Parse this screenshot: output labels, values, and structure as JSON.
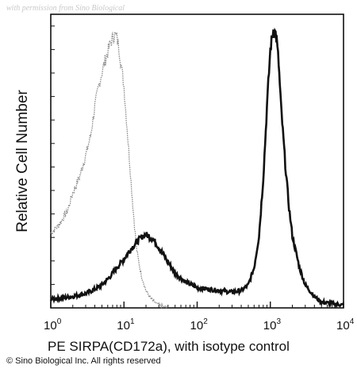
{
  "watermark": "with permission from Sino Biological",
  "chart_data": {
    "type": "line",
    "xlabel": "PE SIRPA(CD172a), with isotype control",
    "ylabel": "Relative Cell Number",
    "x_scale": "log",
    "xlim": [
      1,
      10000
    ],
    "ylim": [
      0,
      100
    ],
    "x_ticks": [
      {
        "base": "10",
        "exp": "0",
        "value": 1
      },
      {
        "base": "10",
        "exp": "1",
        "value": 10
      },
      {
        "base": "10",
        "exp": "2",
        "value": 100
      },
      {
        "base": "10",
        "exp": "3",
        "value": 1000
      },
      {
        "base": "10",
        "exp": "4",
        "value": 10000
      }
    ],
    "y_tick_labels": "none",
    "grid": false,
    "legend": "none",
    "series": [
      {
        "style": "dotted-gray",
        "color": "#8a8a8a",
        "x": [
          1,
          1.3,
          1.7,
          2,
          2.5,
          3,
          3.5,
          4,
          4.5,
          5,
          5.5,
          6,
          6.5,
          7,
          7.5,
          8,
          8.5,
          9,
          10,
          11,
          12,
          13,
          14,
          15,
          17,
          20,
          23,
          26,
          30,
          35,
          40
        ],
        "y": [
          26,
          29,
          34,
          40,
          46,
          53,
          60,
          70,
          77,
          82,
          86,
          89,
          92,
          94,
          95,
          94,
          91,
          86,
          77,
          63,
          50,
          38,
          28,
          20,
          12,
          6,
          3.5,
          2,
          1,
          0.5,
          0
        ]
      },
      {
        "style": "solid-black",
        "color": "#111111",
        "x": [
          1,
          1.5,
          2,
          3,
          4,
          5,
          6,
          7,
          8,
          10,
          12,
          15,
          18,
          20,
          25,
          30,
          40,
          50,
          70,
          100,
          150,
          200,
          300,
          400,
          500,
          600,
          700,
          800,
          900,
          1000,
          1100,
          1200,
          1300,
          1400,
          1600,
          1800,
          2000,
          2500,
          3000,
          4000,
          5000,
          7000,
          10000
        ],
        "y": [
          3,
          3.5,
          4,
          5,
          6.5,
          8,
          10,
          12,
          14,
          17,
          20,
          23,
          25,
          25.5,
          24,
          21,
          16,
          12,
          9,
          7,
          6.5,
          6,
          5.5,
          6,
          8,
          14,
          25,
          45,
          70,
          90,
          97,
          95,
          85,
          70,
          50,
          35,
          25,
          14,
          8,
          4,
          2,
          1.5,
          1
        ]
      }
    ]
  },
  "copyright": "© Sino Biological Inc. All rights reserved"
}
